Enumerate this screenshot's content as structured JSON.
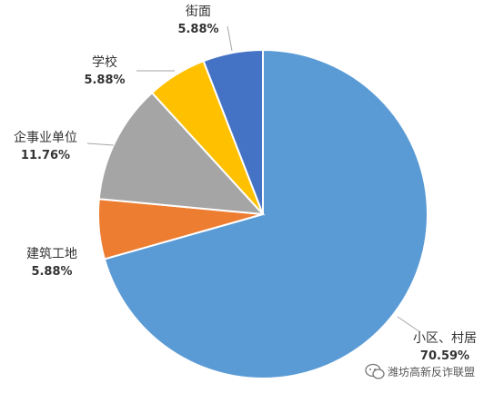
{
  "chart_data": {
    "type": "pie",
    "title": "",
    "slices": [
      {
        "name": "小区、村居",
        "value": 70.59,
        "label": "70.59%",
        "color": "#5B9BD5"
      },
      {
        "name": "建筑工地",
        "value": 5.88,
        "label": "5.88%",
        "color": "#ED7D31"
      },
      {
        "name": "企事业单位",
        "value": 11.76,
        "label": "11.76%",
        "color": "#A5A5A5"
      },
      {
        "name": "学校",
        "value": 5.88,
        "label": "5.88%",
        "color": "#FFC000"
      },
      {
        "name": "街面",
        "value": 5.88,
        "label": "5.88%",
        "color": "#4472C4"
      }
    ],
    "start": "12 o'clock",
    "direction": "clockwise",
    "legend": "none"
  },
  "watermark": {
    "text": "潍坊高新反诈联盟",
    "icon": "wechat-icon"
  }
}
